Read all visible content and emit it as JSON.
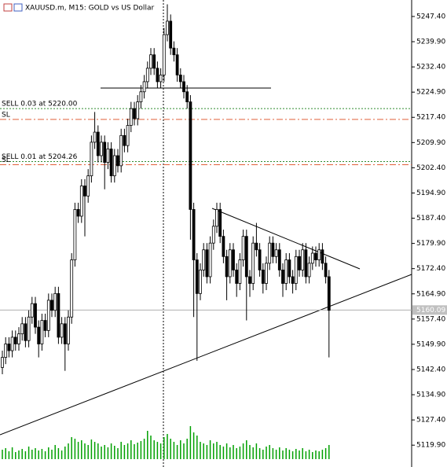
{
  "chart_data": {
    "type": "candlestick",
    "title": "XAUUSD.m, M15:  GOLD vs US Dollar",
    "ylim": [
      5113.4,
      5252.3
    ],
    "yticks": [
      {
        "value": 5247.4,
        "label": "5247.40"
      },
      {
        "value": 5239.9,
        "label": "5239.90"
      },
      {
        "value": 5232.4,
        "label": "5232.40"
      },
      {
        "value": 5224.9,
        "label": "5224.90"
      },
      {
        "value": 5217.4,
        "label": "5217.40"
      },
      {
        "value": 5209.9,
        "label": "5209.90"
      },
      {
        "value": 5202.4,
        "label": "5202.40"
      },
      {
        "value": 5194.9,
        "label": "5194.90"
      },
      {
        "value": 5187.4,
        "label": "5187.40"
      },
      {
        "value": 5179.9,
        "label": "5179.90"
      },
      {
        "value": 5172.4,
        "label": "5172.40"
      },
      {
        "value": 5164.9,
        "label": "5164.90"
      },
      {
        "value": 5157.4,
        "label": "5157.40"
      },
      {
        "value": 5149.9,
        "label": "5149.90"
      },
      {
        "value": 5142.4,
        "label": "5142.40"
      },
      {
        "value": 5134.9,
        "label": "5134.90"
      },
      {
        "value": 5127.4,
        "label": "5127.40"
      },
      {
        "value": 5119.9,
        "label": "5119.90"
      }
    ],
    "open": [
      5143,
      5146,
      5150,
      5148,
      5152,
      5150,
      5153,
      5156,
      5151,
      5158,
      5162,
      5155,
      5150,
      5157,
      5154,
      5163,
      5160,
      5165,
      5152,
      5156,
      5150,
      5158,
      5175,
      5190,
      5188,
      5197,
      5194,
      5200,
      5210,
      5213,
      5206,
      5210,
      5204,
      5208,
      5200,
      5206,
      5203,
      5212,
      5209,
      5215,
      5220,
      5217,
      5222,
      5225,
      5228,
      5232,
      5236,
      5232,
      5228,
      5230,
      5242,
      5246,
      5238,
      5236,
      5230,
      5228,
      5225,
      5222,
      5190,
      5175,
      5165,
      5172,
      5178,
      5170,
      5180,
      5185,
      5190,
      5182,
      5176,
      5170,
      5178,
      5172,
      5168,
      5175,
      5182,
      5170,
      5168,
      5180,
      5178,
      5172,
      5168,
      5174,
      5180,
      5176,
      5178,
      5172,
      5168,
      5175,
      5170,
      5168,
      5176,
      5172,
      5178,
      5170,
      5174,
      5177,
      5175,
      5178,
      5174,
      5170
    ],
    "high": [
      5148,
      5152,
      5152,
      5154,
      5154,
      5155,
      5158,
      5158,
      5160,
      5164,
      5164,
      5157,
      5159,
      5159,
      5165,
      5165,
      5167,
      5167,
      5158,
      5158,
      5160,
      5177,
      5192,
      5192,
      5199,
      5199,
      5202,
      5212,
      5219,
      5215,
      5212,
      5212,
      5210,
      5210,
      5208,
      5208,
      5214,
      5214,
      5217,
      5222,
      5222,
      5224,
      5227,
      5230,
      5234,
      5238,
      5238,
      5234,
      5232,
      5244,
      5251,
      5248,
      5240,
      5238,
      5232,
      5230,
      5227,
      5224,
      5192,
      5177,
      5174,
      5180,
      5180,
      5182,
      5187,
      5192,
      5192,
      5184,
      5178,
      5180,
      5180,
      5174,
      5177,
      5184,
      5184,
      5172,
      5182,
      5186,
      5180,
      5174,
      5176,
      5182,
      5182,
      5180,
      5180,
      5174,
      5177,
      5177,
      5172,
      5178,
      5178,
      5180,
      5180,
      5176,
      5179,
      5179,
      5180,
      5180,
      5176,
      5172
    ],
    "low": [
      5141,
      5144,
      5146,
      5146,
      5148,
      5148,
      5151,
      5149,
      5149,
      5156,
      5153,
      5146,
      5148,
      5152,
      5152,
      5158,
      5158,
      5150,
      5150,
      5142,
      5148,
      5156,
      5173,
      5186,
      5186,
      5182,
      5192,
      5198,
      5208,
      5204,
      5204,
      5196,
      5202,
      5198,
      5198,
      5201,
      5201,
      5207,
      5207,
      5213,
      5215,
      5215,
      5220,
      5223,
      5226,
      5230,
      5230,
      5226,
      5226,
      5228,
      5240,
      5236,
      5234,
      5228,
      5226,
      5223,
      5220,
      5181,
      5158,
      5145,
      5163,
      5170,
      5168,
      5168,
      5178,
      5183,
      5180,
      5174,
      5163,
      5168,
      5170,
      5164,
      5166,
      5173,
      5157,
      5164,
      5166,
      5176,
      5170,
      5165,
      5166,
      5172,
      5174,
      5174,
      5170,
      5164,
      5166,
      5168,
      5165,
      5166,
      5170,
      5170,
      5168,
      5168,
      5172,
      5173,
      5173,
      5172,
      5168,
      5146
    ],
    "close": [
      5146,
      5150,
      5148,
      5152,
      5150,
      5153,
      5156,
      5151,
      5158,
      5162,
      5155,
      5150,
      5157,
      5154,
      5163,
      5160,
      5165,
      5152,
      5156,
      5150,
      5158,
      5175,
      5190,
      5188,
      5197,
      5194,
      5200,
      5210,
      5213,
      5206,
      5210,
      5204,
      5208,
      5200,
      5206,
      5203,
      5212,
      5209,
      5215,
      5220,
      5217,
      5222,
      5225,
      5228,
      5232,
      5236,
      5232,
      5228,
      5230,
      5242,
      5246,
      5238,
      5236,
      5230,
      5228,
      5225,
      5222,
      5190,
      5175,
      5165,
      5172,
      5178,
      5170,
      5180,
      5185,
      5190,
      5182,
      5176,
      5170,
      5178,
      5172,
      5168,
      5175,
      5182,
      5170,
      5168,
      5180,
      5178,
      5172,
      5168,
      5174,
      5180,
      5176,
      5178,
      5172,
      5168,
      5175,
      5170,
      5168,
      5176,
      5172,
      5178,
      5170,
      5174,
      5177,
      5175,
      5178,
      5174,
      5170,
      5160
    ],
    "volume": [
      12,
      14,
      10,
      15,
      9,
      11,
      13,
      10,
      16,
      12,
      14,
      11,
      13,
      10,
      15,
      12,
      18,
      14,
      11,
      16,
      20,
      28,
      26,
      22,
      24,
      20,
      18,
      25,
      22,
      20,
      16,
      18,
      15,
      20,
      17,
      14,
      22,
      18,
      20,
      24,
      19,
      21,
      23,
      26,
      36,
      30,
      24,
      22,
      20,
      28,
      32,
      26,
      22,
      18,
      24,
      20,
      26,
      42,
      34,
      30,
      22,
      20,
      18,
      24,
      20,
      22,
      18,
      16,
      20,
      15,
      18,
      14,
      16,
      20,
      24,
      18,
      15,
      20,
      14,
      12,
      16,
      18,
      14,
      12,
      15,
      11,
      14,
      12,
      10,
      13,
      11,
      14,
      10,
      12,
      9,
      11,
      10,
      12,
      14,
      18
    ],
    "volume_color": "#00a000",
    "levels": [
      {
        "label": "SELL 0.03 at 5220.00",
        "value": 5220.0,
        "color": "#2e8b2e",
        "style": "dotted"
      },
      {
        "label": "SL",
        "value": 5216.8,
        "color": "#e0603a",
        "style": "dashdot"
      },
      {
        "label": "SELL 0.01 at 5204.26",
        "value": 5204.26,
        "color": "#2e8b2e",
        "style": "dotted"
      },
      {
        "label": "SL",
        "value": 5203.3,
        "color": "#e0603a",
        "style": "dashdot"
      }
    ],
    "current_price": 5160.09
  }
}
